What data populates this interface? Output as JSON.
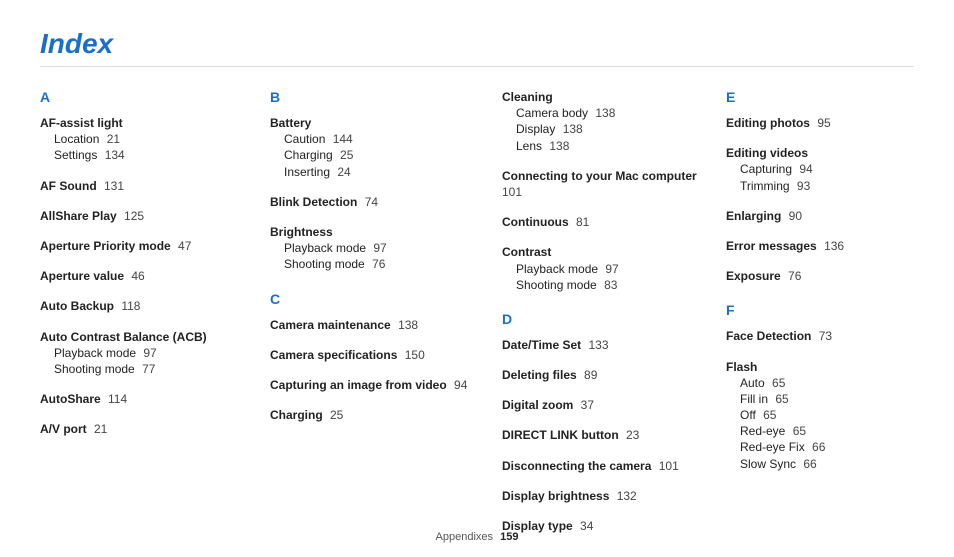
{
  "title": "Index",
  "footer_label": "Appendixes",
  "footer_page": "159",
  "columns": [
    {
      "groups": [
        {
          "letter": "A",
          "entries": [
            {
              "main": "AF-assist light",
              "subs": [
                {
                  "label": "Location",
                  "page": "21"
                },
                {
                  "label": "Settings",
                  "page": "134"
                }
              ]
            },
            {
              "main": "AF Sound",
              "page": "131"
            },
            {
              "main": "AllShare Play",
              "page": "125"
            },
            {
              "main": "Aperture Priority mode",
              "page": "47"
            },
            {
              "main": "Aperture value",
              "page": "46"
            },
            {
              "main": "Auto Backup",
              "page": "118"
            },
            {
              "main": "Auto Contrast Balance (ACB)",
              "subs": [
                {
                  "label": "Playback mode",
                  "page": "97"
                },
                {
                  "label": "Shooting mode",
                  "page": "77"
                }
              ]
            },
            {
              "main": "AutoShare",
              "page": "114"
            },
            {
              "main": "A/V port",
              "page": "21"
            }
          ]
        }
      ]
    },
    {
      "groups": [
        {
          "letter": "B",
          "entries": [
            {
              "main": "Battery",
              "subs": [
                {
                  "label": "Caution",
                  "page": "144"
                },
                {
                  "label": "Charging",
                  "page": "25"
                },
                {
                  "label": "Inserting",
                  "page": "24"
                }
              ]
            },
            {
              "main": "Blink Detection",
              "page": "74"
            },
            {
              "main": "Brightness",
              "subs": [
                {
                  "label": "Playback mode",
                  "page": "97"
                },
                {
                  "label": "Shooting mode",
                  "page": "76"
                }
              ]
            }
          ]
        },
        {
          "letter": "C",
          "entries": [
            {
              "main": "Camera maintenance",
              "page": "138"
            },
            {
              "main": "Camera specifications",
              "page": "150"
            },
            {
              "main": "Capturing an image from video",
              "page": "94"
            },
            {
              "main": "Charging",
              "page": "25"
            }
          ]
        }
      ]
    },
    {
      "groups": [
        {
          "entries": [
            {
              "main": "Cleaning",
              "subs": [
                {
                  "label": "Camera body",
                  "page": "138"
                },
                {
                  "label": "Display",
                  "page": "138"
                },
                {
                  "label": "Lens",
                  "page": "138"
                }
              ]
            },
            {
              "main": "Connecting to your Mac computer",
              "page": "101"
            },
            {
              "main": "Continuous",
              "page": "81"
            },
            {
              "main": "Contrast",
              "subs": [
                {
                  "label": "Playback mode",
                  "page": "97"
                },
                {
                  "label": "Shooting mode",
                  "page": "83"
                }
              ]
            }
          ]
        },
        {
          "letter": "D",
          "entries": [
            {
              "main": "Date/Time Set",
              "page": "133"
            },
            {
              "main": "Deleting files",
              "page": "89"
            },
            {
              "main": "Digital zoom",
              "page": "37"
            },
            {
              "main": "DIRECT LINK button",
              "page": "23"
            },
            {
              "main": "Disconnecting the camera",
              "page": "101"
            },
            {
              "main": "Display brightness",
              "page": "132"
            },
            {
              "main": "Display type",
              "page": "34"
            }
          ]
        }
      ]
    },
    {
      "groups": [
        {
          "letter": "E",
          "entries": [
            {
              "main": "Editing photos",
              "page": "95"
            },
            {
              "main": "Editing videos",
              "subs": [
                {
                  "label": "Capturing",
                  "page": "94"
                },
                {
                  "label": "Trimming",
                  "page": "93"
                }
              ]
            },
            {
              "main": "Enlarging",
              "page": "90"
            },
            {
              "main": "Error messages",
              "page": "136"
            },
            {
              "main": "Exposure",
              "page": "76"
            }
          ]
        },
        {
          "letter": "F",
          "entries": [
            {
              "main": "Face Detection",
              "page": "73"
            },
            {
              "main": "Flash",
              "subs": [
                {
                  "label": "Auto",
                  "page": "65"
                },
                {
                  "label": "Fill in",
                  "page": "65"
                },
                {
                  "label": "Off",
                  "page": "65"
                },
                {
                  "label": "Red-eye",
                  "page": "65"
                },
                {
                  "label": "Red-eye Fix",
                  "page": "66"
                },
                {
                  "label": "Slow Sync",
                  "page": "66"
                }
              ]
            }
          ]
        }
      ]
    }
  ]
}
